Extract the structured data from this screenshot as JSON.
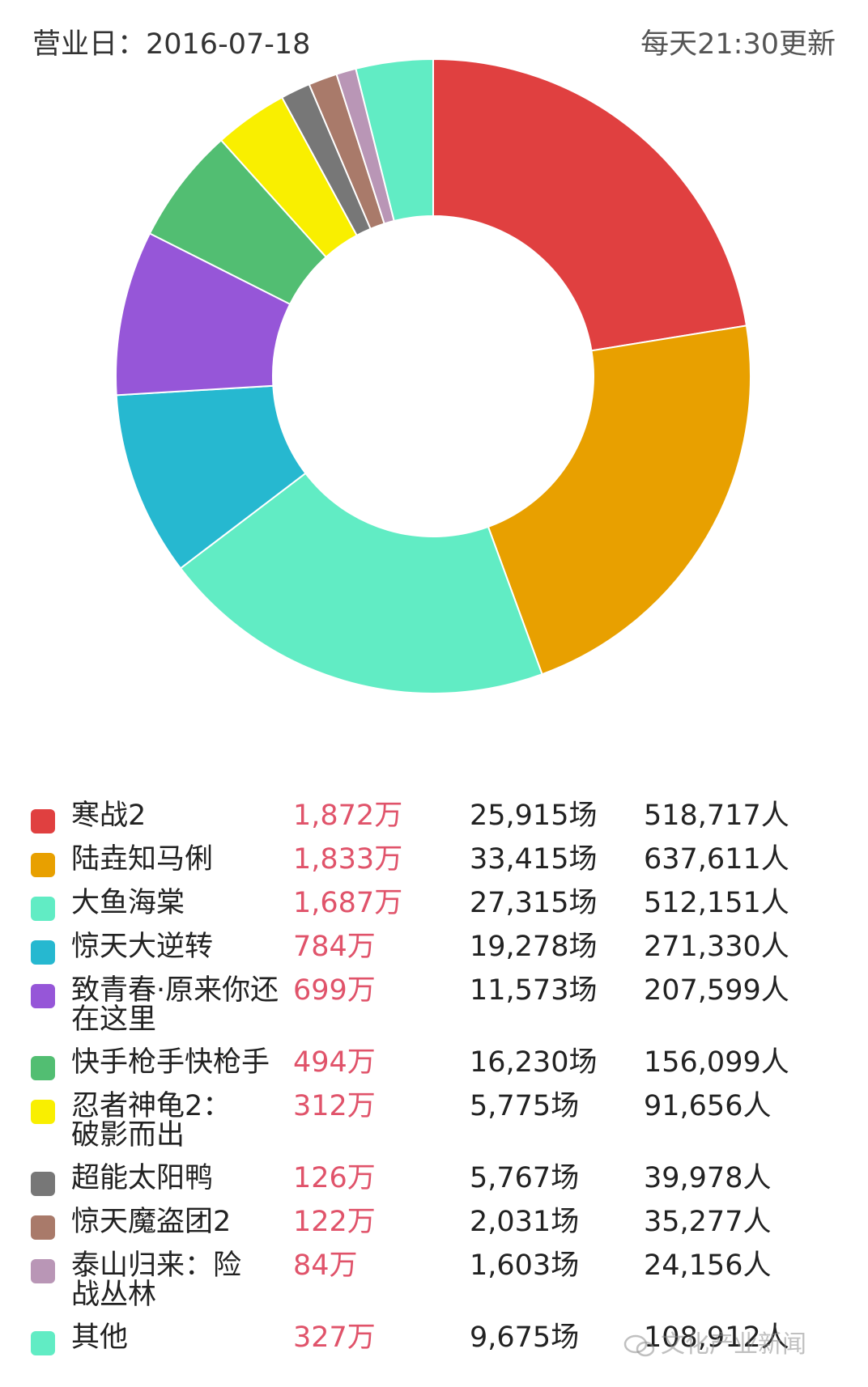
{
  "header": {
    "business_date": "营业日：2016-07-18",
    "update_note": "每天21:30更新"
  },
  "chart_data": {
    "type": "pie",
    "variant": "donut",
    "series": [
      {
        "name": "寒战2",
        "gross": "1,872万",
        "value": 1872,
        "shows": "25,915场",
        "people": "518,717人",
        "color": "#e04040"
      },
      {
        "name": "陆垚知马俐",
        "gross": "1,833万",
        "value": 1833,
        "shows": "33,415场",
        "people": "637,611人",
        "color": "#e8a000"
      },
      {
        "name": "大鱼海棠",
        "gross": "1,687万",
        "value": 1687,
        "shows": "27,315场",
        "people": "512,151人",
        "color": "#61ecc4"
      },
      {
        "name": "惊天大逆转",
        "gross": "784万",
        "value": 784,
        "shows": "19,278场",
        "people": "271,330人",
        "color": "#26b8d0"
      },
      {
        "name": "致青春·原来你还在这里",
        "gross": "699万",
        "value": 699,
        "shows": "11,573场",
        "people": "207,599人",
        "color": "#9656d8"
      },
      {
        "name": "快手枪手快枪手",
        "gross": "494万",
        "value": 494,
        "shows": "16,230场",
        "people": "156,099人",
        "color": "#52be72"
      },
      {
        "name": "忍者神龟2：破影而出",
        "gross": "312万",
        "value": 312,
        "shows": "5,775场",
        "people": "91,656人",
        "color": "#f9ef00"
      },
      {
        "name": "超能太阳鸭",
        "gross": "126万",
        "value": 126,
        "shows": "5,767场",
        "people": "39,978人",
        "color": "#777777"
      },
      {
        "name": "惊天魔盗团2",
        "gross": "122万",
        "value": 122,
        "shows": "2,031场",
        "people": "35,277人",
        "color": "#a97a6a"
      },
      {
        "name": "泰山归来：险战丛林",
        "gross": "84万",
        "value": 84,
        "shows": "1,603场",
        "people": "24,156人",
        "color": "#b996b6"
      },
      {
        "name": "其他",
        "gross": "327万",
        "value": 327,
        "shows": "9,675场",
        "people": "108,912人",
        "color": "#61ecc4"
      }
    ]
  },
  "watermark": "文化产业新闻"
}
